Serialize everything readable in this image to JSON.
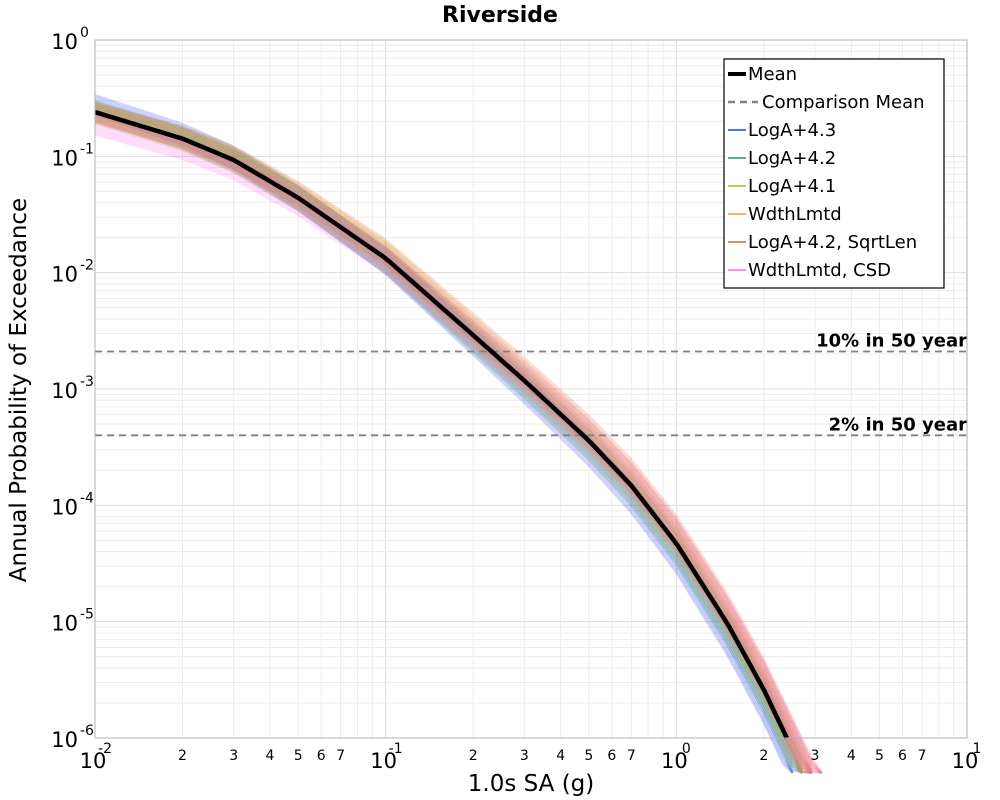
{
  "chart_data": {
    "type": "line",
    "title": "Riverside",
    "xlabel": "1.0s SA (g)",
    "ylabel": "Annual Probability of Exceedance",
    "xscale": "log",
    "yscale": "log",
    "xlim": [
      0.01,
      10
    ],
    "ylim": [
      1e-06,
      1
    ],
    "grid": true,
    "legend_position": "top-right",
    "x_major_ticks": [
      {
        "base": "10",
        "exp": "-2"
      },
      {
        "base": "10",
        "exp": "-1"
      },
      {
        "base": "10",
        "exp": "0"
      },
      {
        "base": "10",
        "exp": "1"
      }
    ],
    "x_minor_labels": [
      "2",
      "3",
      "4",
      "5",
      "6",
      "7"
    ],
    "y_major_ticks": [
      {
        "base": "10",
        "exp": "0"
      },
      {
        "base": "10",
        "exp": "-1"
      },
      {
        "base": "10",
        "exp": "-2"
      },
      {
        "base": "10",
        "exp": "-3"
      },
      {
        "base": "10",
        "exp": "-4"
      },
      {
        "base": "10",
        "exp": "-5"
      },
      {
        "base": "10",
        "exp": "-6"
      }
    ],
    "mean_curve": {
      "name": "Mean",
      "color": "#000000",
      "x": [
        0.01,
        0.02,
        0.03,
        0.05,
        0.1,
        0.2,
        0.3,
        0.5,
        0.7,
        1.0,
        1.5,
        2.0,
        2.4
      ],
      "y": [
        0.24,
        0.142,
        0.093,
        0.044,
        0.0133,
        0.0029,
        0.00118,
        0.00036,
        0.000148,
        4.7e-05,
        9.6e-06,
        2.6e-06,
        1e-06
      ]
    },
    "branch_families": [
      {
        "name": "LogA+4.3",
        "color": "#1f3cff"
      },
      {
        "name": "LogA+4.2",
        "color": "#2e8b57"
      },
      {
        "name": "LogA+4.1",
        "color": "#a6b82b"
      },
      {
        "name": "WdthLmtd",
        "color": "#f0a020"
      },
      {
        "name": "LogA+4.2, SqrtLen",
        "color": "#d2693a"
      },
      {
        "name": "WdthLmtd, CSD",
        "color": "#ff66ee"
      }
    ],
    "legend": [
      {
        "label": "Mean",
        "style": "solid",
        "color": "#000000"
      },
      {
        "label": "Comparison Mean",
        "style": "dashed",
        "color": "#808080"
      },
      {
        "label": "LogA+4.3",
        "style": "solid",
        "color": "#1f3cff"
      },
      {
        "label": "LogA+4.2",
        "style": "solid",
        "color": "#2e8b57"
      },
      {
        "label": "LogA+4.1",
        "style": "solid",
        "color": "#a6b82b"
      },
      {
        "label": "WdthLmtd",
        "style": "solid",
        "color": "#f0a020"
      },
      {
        "label": "LogA+4.2, SqrtLen",
        "style": "solid",
        "color": "#d2693a"
      },
      {
        "label": "WdthLmtd, CSD",
        "style": "solid",
        "color": "#ff66ee"
      }
    ],
    "reference_lines": [
      {
        "label": "10% in 50 year",
        "y": 0.0021,
        "color": "#808080",
        "style": "dashed"
      },
      {
        "label": "2% in 50 year",
        "y": 0.0004,
        "color": "#808080",
        "style": "dashed"
      }
    ]
  }
}
